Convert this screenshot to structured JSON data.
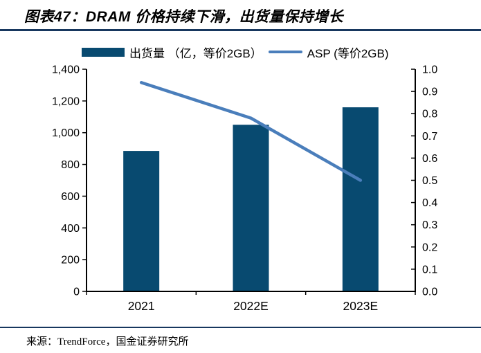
{
  "header": {
    "title": "图表47：DRAM 价格持续下滑，出货量保持增长"
  },
  "legend": {
    "bar_label": "出货量 （亿，等价2GB）",
    "line_label": "ASP (等价2GB)"
  },
  "footer": {
    "source": "来源：TrendForce，国金证券研究所"
  },
  "colors": {
    "bar": "#084A70",
    "line": "#4A7EBB",
    "rule": "#17375E",
    "axis": "#000000"
  },
  "chart_data": {
    "type": "bar+line combo",
    "title": "图表47：DRAM 价格持续下滑，出货量保持增长",
    "categories": [
      "2021",
      "2022E",
      "2023E"
    ],
    "series": [
      {
        "name": "出货量 （亿，等价2GB）",
        "type": "bar",
        "axis": "left",
        "color": "#084A70",
        "values": [
          885,
          1050,
          1160
        ]
      },
      {
        "name": "ASP (等价2GB)",
        "type": "line",
        "axis": "right",
        "color": "#4A7EBB",
        "values": [
          0.94,
          0.78,
          0.5
        ]
      }
    ],
    "left_axis": {
      "min": 0,
      "max": 1400,
      "step": 200,
      "tick_labels": [
        "0",
        "200",
        "400",
        "600",
        "800",
        "1,000",
        "1,200",
        "1,400"
      ]
    },
    "right_axis": {
      "min": 0.0,
      "max": 1.0,
      "step": 0.1,
      "tick_labels": [
        "0.0",
        "0.1",
        "0.2",
        "0.3",
        "0.4",
        "0.5",
        "0.6",
        "0.7",
        "0.8",
        "0.9",
        "1.0"
      ]
    },
    "legend_position": "top",
    "grid": false,
    "source": "来源：TrendForce，国金证券研究所"
  }
}
